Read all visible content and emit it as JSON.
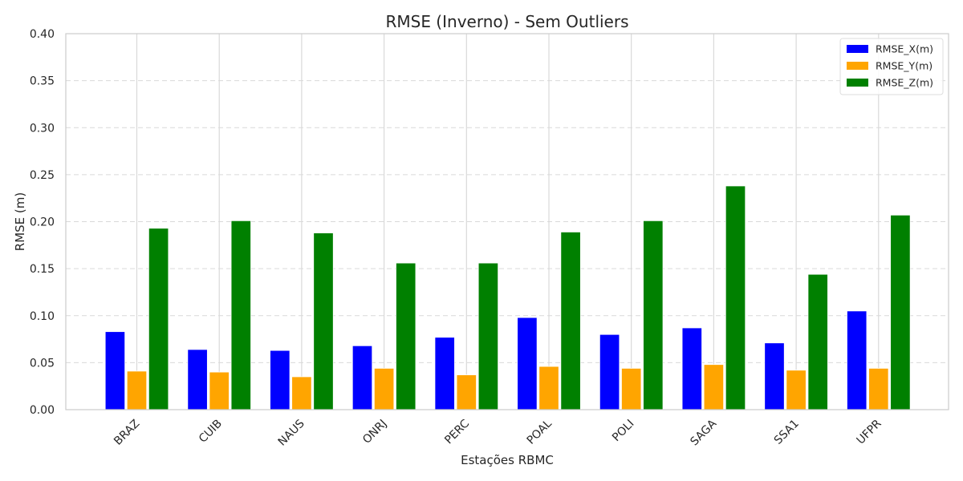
{
  "chart_data": {
    "type": "bar",
    "title": "RMSE (Inverno) - Sem Outliers",
    "xlabel": "Estações RBMC",
    "ylabel": "RMSE (m)",
    "ylim": [
      0,
      0.4
    ],
    "yticks": [
      "0.00",
      "0.05",
      "0.10",
      "0.15",
      "0.20",
      "0.25",
      "0.30",
      "0.35",
      "0.40"
    ],
    "categories": [
      "BRAZ",
      "CUIB",
      "NAUS",
      "ONRJ",
      "PERC",
      "POAL",
      "POLI",
      "SAGA",
      "SSA1",
      "UFPR"
    ],
    "series": [
      {
        "name": "RMSE_X(m)",
        "color": "#0000ff",
        "values": [
          0.083,
          0.064,
          0.063,
          0.068,
          0.077,
          0.098,
          0.08,
          0.087,
          0.071,
          0.105
        ]
      },
      {
        "name": "RMSE_Y(m)",
        "color": "#ffa500",
        "values": [
          0.041,
          0.04,
          0.035,
          0.044,
          0.037,
          0.046,
          0.044,
          0.048,
          0.042,
          0.044
        ]
      },
      {
        "name": "RMSE_Z(m)",
        "color": "#008000",
        "values": [
          0.193,
          0.201,
          0.188,
          0.156,
          0.156,
          0.189,
          0.201,
          0.238,
          0.144,
          0.207
        ]
      }
    ],
    "grid": "y-dashed, x-solid",
    "legend": "top-right"
  }
}
